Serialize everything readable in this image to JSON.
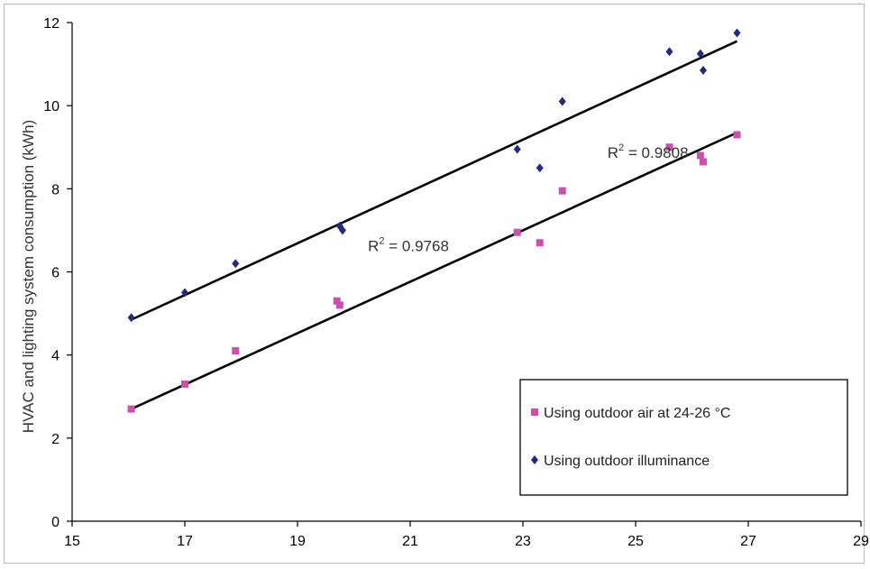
{
  "chart_data": {
    "type": "scatter",
    "title": "",
    "xlabel": "",
    "ylabel": "HVAC and lighting system consumption  (kWh)",
    "xlim": [
      15,
      29
    ],
    "ylim": [
      0,
      12
    ],
    "x_ticks": [
      15,
      17,
      19,
      21,
      23,
      25,
      27,
      29
    ],
    "y_ticks": [
      0,
      2,
      4,
      6,
      8,
      10,
      12
    ],
    "x_tick_labels": [
      "15",
      "17",
      "19",
      "21",
      "23",
      "25",
      "27",
      "29"
    ],
    "y_tick_labels": [
      "0",
      "2",
      "4",
      "6",
      "8",
      "10",
      "12"
    ],
    "grid": false,
    "legend_position": "bottom-right",
    "series": [
      {
        "name": "Using outdoor air at 24-26 °C",
        "marker": "square",
        "color": "#cc4fb0",
        "points": [
          [
            16.05,
            2.7
          ],
          [
            17.0,
            3.3
          ],
          [
            17.9,
            4.1
          ],
          [
            19.7,
            5.3
          ],
          [
            19.75,
            5.2
          ],
          [
            22.9,
            6.95
          ],
          [
            23.3,
            6.7
          ],
          [
            23.7,
            7.95
          ],
          [
            25.6,
            9.0
          ],
          [
            26.15,
            8.8
          ],
          [
            26.2,
            8.65
          ],
          [
            26.8,
            9.3
          ]
        ],
        "trendline": {
          "x": [
            16.05,
            26.8
          ],
          "y": [
            2.7,
            9.35
          ]
        }
      },
      {
        "name": "Using outdoor illuminance",
        "marker": "diamond",
        "color": "#1f2a80",
        "points": [
          [
            16.05,
            4.9
          ],
          [
            17.0,
            5.5
          ],
          [
            17.9,
            6.2
          ],
          [
            19.75,
            7.1
          ],
          [
            19.8,
            7.0
          ],
          [
            22.9,
            8.95
          ],
          [
            23.3,
            8.5
          ],
          [
            23.7,
            10.1
          ],
          [
            25.6,
            11.3
          ],
          [
            26.15,
            11.25
          ],
          [
            26.2,
            10.85
          ],
          [
            26.8,
            11.75
          ]
        ],
        "trendline": {
          "x": [
            16.05,
            26.8
          ],
          "y": [
            4.85,
            11.55
          ]
        }
      }
    ],
    "annotations": [
      {
        "base": "R",
        "sup": "2",
        "value": " = 0.9768",
        "x": 20.25,
        "y": 6.5
      },
      {
        "base": "R",
        "sup": "2",
        "value": " = 0.9808",
        "x": 24.5,
        "y": 8.75
      }
    ],
    "legend": {
      "entries": [
        {
          "label": "Using outdoor air at 24-26 °C",
          "marker": "square",
          "color": "#cc4fb0"
        },
        {
          "label": "Using outdoor illuminance",
          "marker": "diamond",
          "color": "#1f2a80"
        }
      ]
    }
  }
}
